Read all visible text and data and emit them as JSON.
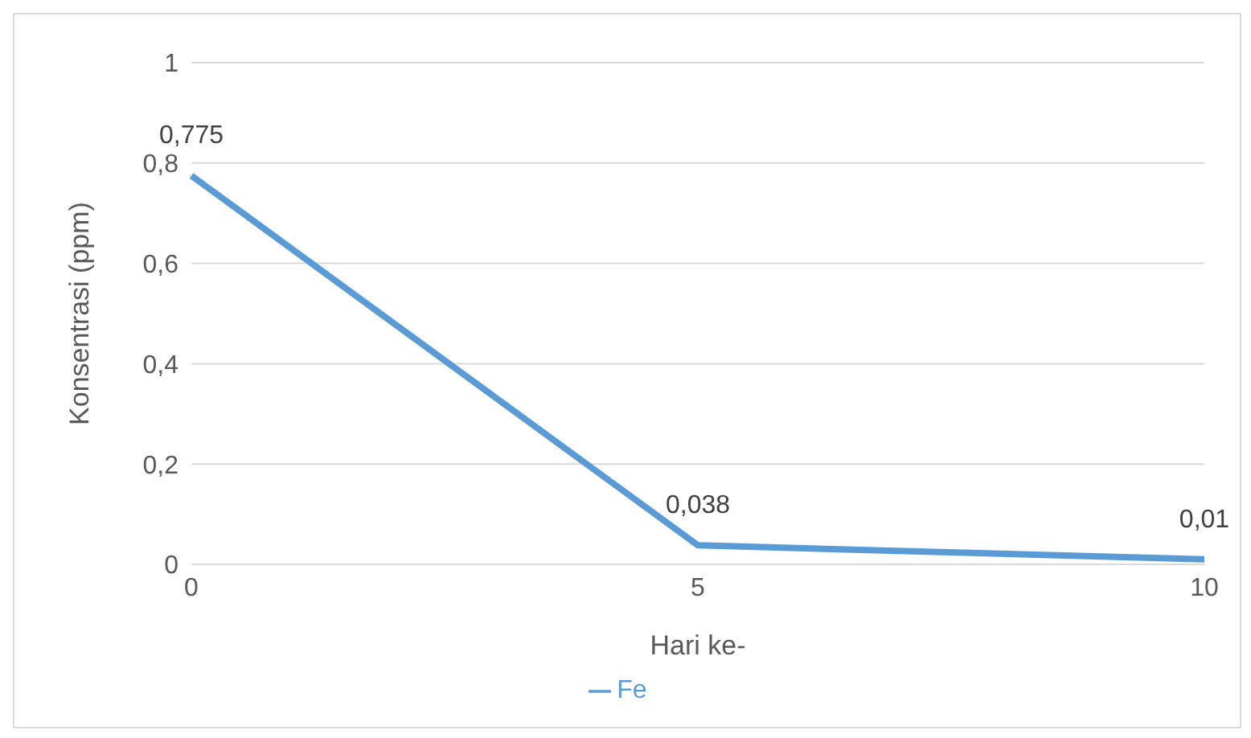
{
  "chart_data": {
    "type": "line",
    "xlabel": "Hari ke-",
    "ylabel": "Konsentrasi (ppm)",
    "categories": [
      "0",
      "5",
      "10"
    ],
    "series": [
      {
        "name": "Fe",
        "color": "#5b9bd5",
        "values": [
          0.775,
          0.038,
          0.01
        ],
        "value_labels": [
          "0,775",
          "0,038",
          "0,01"
        ]
      }
    ],
    "ylim": [
      0,
      1
    ],
    "yticks": [
      0,
      {
        "value": 0.2,
        "label": "0,2"
      },
      {
        "value": 0.4,
        "label": "0,4"
      },
      {
        "value": 0.6,
        "label": "0,6"
      },
      {
        "value": 0.8,
        "label": "0,8"
      },
      1
    ],
    "grid": "y",
    "legend": "bottom",
    "marker": "none",
    "line_style": "solid"
  }
}
